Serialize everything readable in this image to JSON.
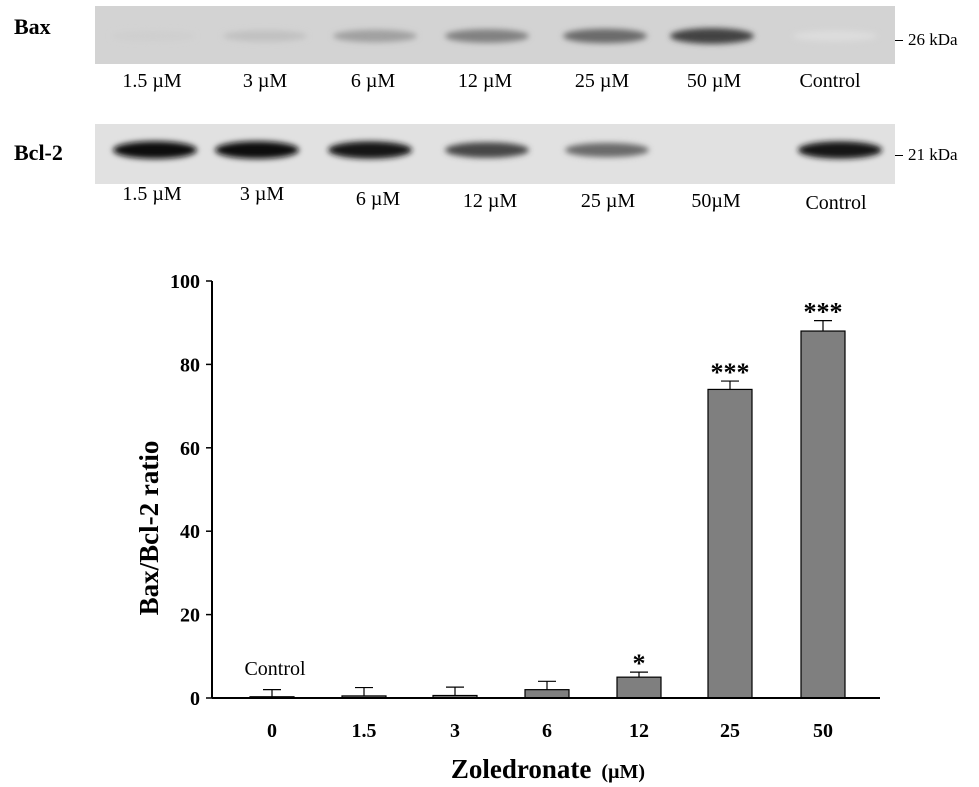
{
  "blots": [
    {
      "protein": "Bax",
      "marker": "26 kDa",
      "lanes": [
        "1.5 µM",
        "3 µM",
        "6 µM",
        "12 µM",
        "25 µM",
        "50 µM",
        "Control"
      ],
      "band_intensity": [
        0.12,
        0.18,
        0.32,
        0.45,
        0.55,
        0.72,
        0.06
      ]
    },
    {
      "protein": "Bcl-2",
      "marker": "21 kDa",
      "lanes": [
        "1.5 µM",
        "3 µM",
        "6 µM",
        "12 µM",
        "25 µM",
        "50µM",
        "Control"
      ],
      "band_intensity": [
        0.95,
        0.95,
        0.9,
        0.7,
        0.55,
        0.0,
        0.92
      ]
    }
  ],
  "chart_data": {
    "type": "bar",
    "categories": [
      "0",
      "1.5",
      "3",
      "6",
      "12",
      "25",
      "50"
    ],
    "values": [
      0.3,
      0.5,
      0.6,
      2,
      5,
      74,
      88
    ],
    "errors": [
      1.7,
      2,
      2,
      2,
      1.2,
      2,
      2.5
    ],
    "significance": [
      "",
      "",
      "",
      "",
      "*",
      "***",
      "***"
    ],
    "bar_annotations": [
      "Control",
      "",
      "",
      "",
      "",
      "",
      ""
    ],
    "xlabel": "Zoledronate",
    "xlabel_unit": "(µM)",
    "ylabel": "Bax/Bcl-2 ratio",
    "ylim": [
      0,
      100
    ],
    "yticks": [
      "0",
      "20",
      "40",
      "60",
      "80",
      "100"
    ],
    "bar_color": "#7f7f7f",
    "grid": false
  }
}
